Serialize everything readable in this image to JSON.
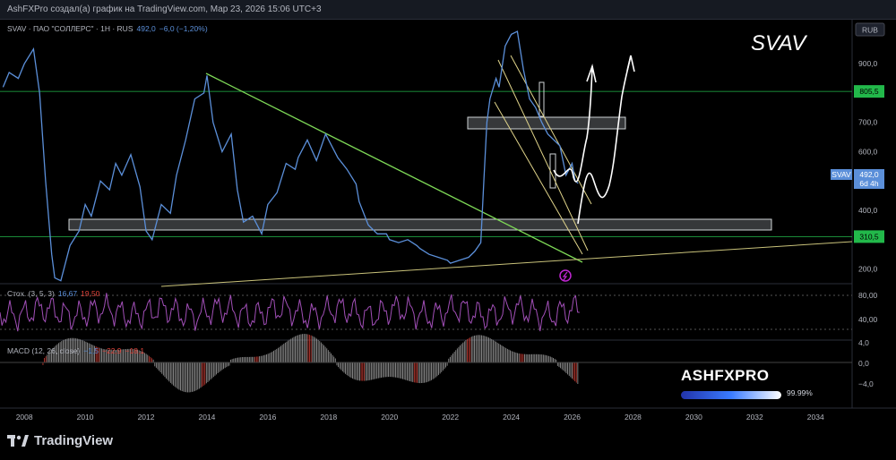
{
  "header": {
    "snapshot_text": "AshFXPro создал(а) график на TradingView.com, Map 23, 2026 15:06 UTC+3"
  },
  "legend": {
    "symbol_text": "SVAV · ПАО \"СОЛЛЕРС\" · 1Н · RUS",
    "last": "492,0",
    "change": "−6,0 (−1,20%)"
  },
  "ticker_big": "SVAV",
  "currency": "RUB",
  "price_axis_ticks": [
    "900,0",
    "700,0",
    "600,0",
    "400,0",
    "200,0"
  ],
  "level_tags": [
    "805,5",
    "310,5"
  ],
  "last_price_tag": {
    "symbol": "SVAV",
    "price": "492,0",
    "timer": "6d 4h"
  },
  "stoch": {
    "label": "Стох. (3, 5, 3)",
    "k": "16,67",
    "d": "19,50",
    "ticks": [
      "80,00",
      "40,00"
    ]
  },
  "macd": {
    "label": "MACD (12, 26, close)",
    "v1": "−1,5",
    "v2": "−22,9",
    "v3": "−18,1",
    "ticks": [
      "4,0",
      "0,0",
      "−4,0"
    ]
  },
  "time_axis": [
    "2008",
    "2010",
    "2012",
    "2014",
    "2016",
    "2018",
    "2020",
    "2022",
    "2024",
    "2026",
    "2028",
    "2030",
    "2032",
    "2034"
  ],
  "brand": {
    "name": "ASHFXPRO",
    "percent": "99.99%"
  },
  "watermark": "TradingView",
  "colors": {
    "price_line": "#5b8fd9",
    "level_line": "#22b84a",
    "trend_line": "#7ed957",
    "stoch_line": "#a14fb7",
    "macd_up": "#b0b0b0",
    "macd_down": "#e0443a"
  },
  "chart_data": {
    "type": "line",
    "title": "SVAV · ПАО \"СОЛЛЕРС\" · 1Н · RUS",
    "x_unit": "year",
    "y_unit": "RUB",
    "series": [
      {
        "name": "SVAV",
        "x": [
          2007.3,
          2007.5,
          2007.8,
          2008.0,
          2008.3,
          2008.5,
          2008.7,
          2008.9,
          2009.0,
          2009.2,
          2009.5,
          2009.8,
          2010.0,
          2010.2,
          2010.5,
          2010.8,
          2011.0,
          2011.2,
          2011.5,
          2011.8,
          2012.0,
          2012.2,
          2012.5,
          2012.8,
          2013.0,
          2013.3,
          2013.6,
          2013.9,
          2014.0,
          2014.2,
          2014.5,
          2014.8,
          2015.0,
          2015.2,
          2015.5,
          2015.8,
          2016.0,
          2016.3,
          2016.6,
          2016.9,
          2017.0,
          2017.3,
          2017.6,
          2017.9,
          2018.0,
          2018.3,
          2018.6,
          2018.9,
          2019.0,
          2019.3,
          2019.6,
          2019.9,
          2020.0,
          2020.3,
          2020.6,
          2020.9,
          2021.0,
          2021.3,
          2021.6,
          2021.9,
          2022.0,
          2022.3,
          2022.6,
          2022.8,
          2023.0,
          2023.1,
          2023.2,
          2023.3,
          2023.5,
          2023.6,
          2023.8,
          2024.0,
          2024.2,
          2024.4,
          2024.6,
          2024.8,
          2025.0,
          2025.2,
          2025.4,
          2025.6,
          2025.8,
          2026.0,
          2026.1,
          2026.2
        ],
        "values": [
          820,
          870,
          850,
          900,
          950,
          800,
          500,
          250,
          170,
          160,
          280,
          330,
          420,
          380,
          500,
          470,
          560,
          520,
          590,
          480,
          330,
          300,
          420,
          390,
          520,
          640,
          780,
          800,
          860,
          700,
          600,
          660,
          470,
          360,
          380,
          320,
          420,
          460,
          560,
          540,
          580,
          640,
          570,
          660,
          640,
          580,
          540,
          490,
          430,
          350,
          320,
          320,
          300,
          290,
          300,
          280,
          270,
          250,
          240,
          230,
          220,
          230,
          240,
          260,
          290,
          500,
          700,
          780,
          850,
          820,
          960,
          1000,
          1010,
          880,
          780,
          750,
          700,
          660,
          640,
          620,
          520,
          560,
          500,
          492
        ]
      }
    ],
    "levels": [
      805.5,
      310.5
    ],
    "ylim": [
      150,
      1050
    ],
    "xlim": [
      2007.2,
      2035.2
    ],
    "annotations": [
      "SVAV"
    ]
  }
}
